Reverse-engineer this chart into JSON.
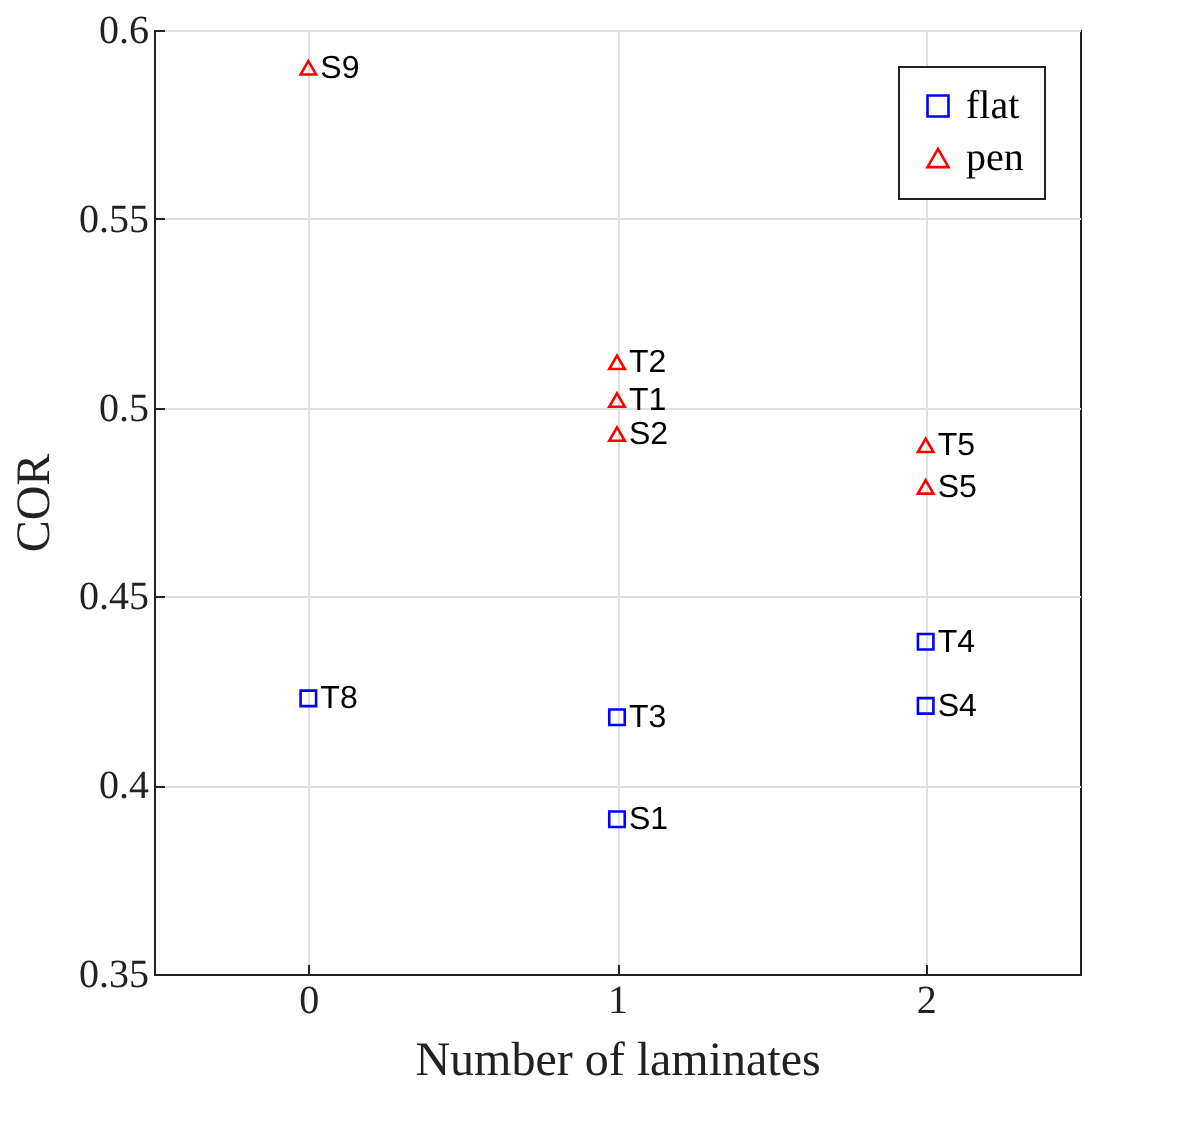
{
  "chart_data": {
    "type": "scatter",
    "xlabel": "Number of laminates",
    "ylabel": "COR",
    "xlim": [
      -0.5,
      2.5
    ],
    "xticks": [
      0,
      1,
      2
    ],
    "ylim": [
      0.35,
      0.6
    ],
    "yticks": [
      0.35,
      0.4,
      0.45,
      0.5,
      0.55,
      0.6
    ],
    "grid": true,
    "legend": "top right",
    "series": [
      {
        "name": "flat",
        "color": "#0000ff",
        "marker": "square",
        "x": [
          0,
          1,
          1,
          2,
          2
        ],
        "values": [
          0.423,
          0.418,
          0.391,
          0.438,
          0.421
        ]
      },
      {
        "name": "pen",
        "color": "#ff0000",
        "marker": "triangle",
        "x": [
          0,
          1,
          1,
          1,
          2,
          2
        ],
        "values": [
          0.59,
          0.512,
          0.502,
          0.493,
          0.49,
          0.479
        ]
      }
    ],
    "annotations": [
      {
        "text": "T8",
        "x": 0,
        "y": 0.423
      },
      {
        "text": "T3",
        "x": 1,
        "y": 0.418
      },
      {
        "text": "S1",
        "x": 1,
        "y": 0.391
      },
      {
        "text": "T4",
        "x": 2,
        "y": 0.438
      },
      {
        "text": "S4",
        "x": 2,
        "y": 0.421
      },
      {
        "text": "S9",
        "x": 0,
        "y": 0.59
      },
      {
        "text": "T2",
        "x": 1,
        "y": 0.512
      },
      {
        "text": "T1",
        "x": 1,
        "y": 0.502
      },
      {
        "text": "S2",
        "x": 1,
        "y": 0.493
      },
      {
        "text": "T5",
        "x": 2,
        "y": 0.49
      },
      {
        "text": "S5",
        "x": 2,
        "y": 0.479
      }
    ]
  }
}
